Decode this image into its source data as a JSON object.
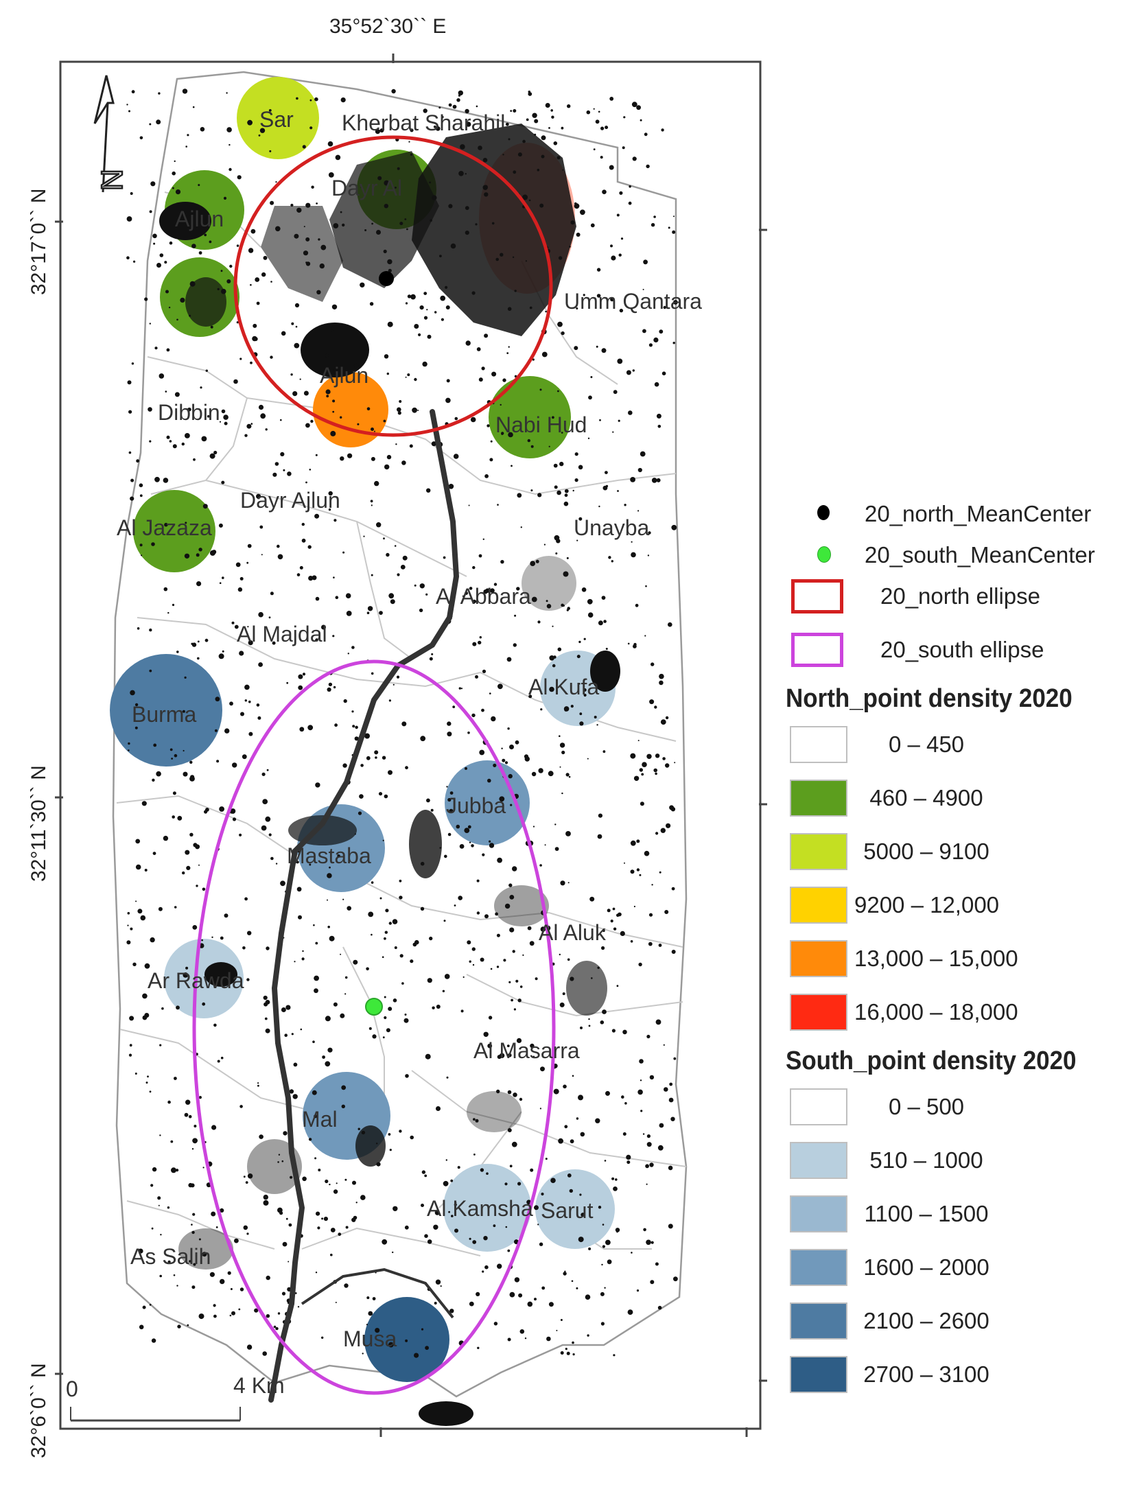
{
  "coordinates": {
    "top_longitude": "35°52`30`` E",
    "lat_1": "32°17`0`` N",
    "lat_2": "32°11`30`` N",
    "lat_3": "32°6`0`` N"
  },
  "north_arrow": {
    "letter": "N"
  },
  "scale_bar": {
    "start": "0",
    "end": "4 Km"
  },
  "places": [
    "Sar",
    "Kherbat Sharahil",
    "Dayr Al",
    "Ajlun",
    "Umm Qantara",
    "Ajlun",
    "Dibbin",
    "Nabi Hud",
    "Dayr Ajlun",
    "Al Jazaza",
    "Unayba",
    "Al Abbara",
    "Al Majdal",
    "Burma",
    "Al Kufa",
    "Jubba",
    "Mastaba",
    "Al Aluk",
    "Ar Rawda",
    "Al Masarra",
    "Mal",
    "Al Kamsha",
    "Sarut",
    "As Salih",
    "Musa"
  ],
  "legend": {
    "north_center": "20_north_MeanCenter",
    "south_center": "20_south_MeanCenter",
    "north_ellipse": "20_north ellipse",
    "south_ellipse": "20_south ellipse",
    "north_title": "North_point density 2020",
    "north_classes": [
      {
        "label": "0 – 450",
        "color": "#ffffff"
      },
      {
        "label": "460 – 4900",
        "color": "#5c9e1e"
      },
      {
        "label": "5000 – 9100",
        "color": "#c4df22"
      },
      {
        "label": "9200 – 12,000",
        "color": "#ffd200"
      },
      {
        "label": "13,000 – 15,000",
        "color": "#ff8a0a"
      },
      {
        "label": "16,000 – 18,000",
        "color": "#ff2a12"
      }
    ],
    "south_title": "South_point density 2020",
    "south_classes": [
      {
        "label": "0 – 500",
        "color": "#ffffff"
      },
      {
        "label": "510 – 1000",
        "color": "#b8cfde"
      },
      {
        "label": "1100 – 1500",
        "color": "#9ab8d0"
      },
      {
        "label": "1600 – 2000",
        "color": "#7199bb"
      },
      {
        "label": "2100 – 2600",
        "color": "#4e7ba2"
      },
      {
        "label": "2700 – 3100",
        "color": "#2e5d86"
      }
    ]
  },
  "colors": {
    "north_ellipse": "#d42020",
    "south_ellipse": "#cc44dd",
    "south_center": "#3ee83a"
  }
}
